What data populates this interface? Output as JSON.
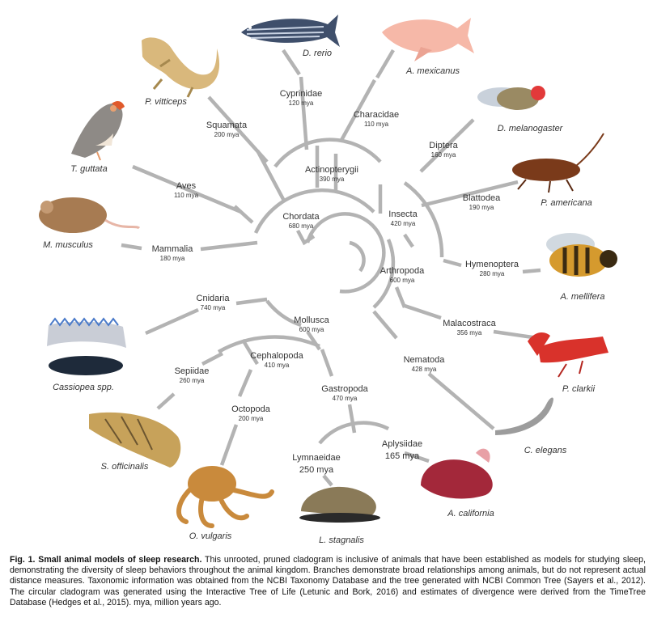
{
  "clades": {
    "chordata": {
      "name": "Chordata",
      "mya": "680 mya"
    },
    "actinopterygii": {
      "name": "Actinopterygii",
      "mya": "390 mya"
    },
    "cyprinidae": {
      "name": "Cyprinidae",
      "mya": "120 mya"
    },
    "characidae": {
      "name": "Characidae",
      "mya": "110 mya"
    },
    "squamata": {
      "name": "Squamata",
      "mya": "200 mya"
    },
    "aves": {
      "name": "Aves",
      "mya": "110 mya"
    },
    "mammalia": {
      "name": "Mammalia",
      "mya": "180 mya"
    },
    "insecta": {
      "name": "Insecta",
      "mya": "420 mya"
    },
    "diptera": {
      "name": "Diptera",
      "mya": "160 mya"
    },
    "blattodea": {
      "name": "Blattodea",
      "mya": "190 mya"
    },
    "hymenoptera": {
      "name": "Hymenoptera",
      "mya": "280 mya"
    },
    "arthropoda": {
      "name": "Arthropoda",
      "mya": "600 mya"
    },
    "malacostraca": {
      "name": "Malacostraca",
      "mya": "356 mya"
    },
    "nematoda": {
      "name": "Nematoda",
      "mya": "428 mya"
    },
    "cnidaria": {
      "name": "Cnidaria",
      "mya": "740 mya"
    },
    "mollusca": {
      "name": "Mollusca",
      "mya": "600 mya"
    },
    "cephalopoda": {
      "name": "Cephalopoda",
      "mya": "410 mya"
    },
    "sepiidae": {
      "name": "Sepiidae",
      "mya": "260 mya"
    },
    "octopoda": {
      "name": "Octopoda",
      "mya": "200 mya"
    },
    "gastropoda": {
      "name": "Gastropoda",
      "mya": "470 mya"
    },
    "lymnaeidae": {
      "name": "Lymnaeidae",
      "mya": "250 mya"
    },
    "aplysiidae": {
      "name": "Aplysiidae",
      "mya": "165 mya"
    }
  },
  "species": {
    "drerio": "D. rerio",
    "amexicanus": "A. mexicanus",
    "pvitticeps": "P. vitticeps",
    "tguttata": "T. guttata",
    "mmusculus": "M. musculus",
    "dmelanogaster": "D. melanogaster",
    "pamericana": "P. americana",
    "amellifera": "A. mellifera",
    "pclarkii": "P. clarkii",
    "celegans": "C. elegans",
    "acalifornia": "A. california",
    "lstagnalis": "L. stagnalis",
    "ovulgaris": "O. vulgaris",
    "sofficinalis": "S. officinalis",
    "cassiopea": "Cassiopea spp."
  },
  "caption": {
    "title": "Fig. 1. Small animal models of sleep research.",
    "body": " This unrooted, pruned cladogram is inclusive of animals that have been established as models for studying sleep, demonstrating the diversity of sleep behaviors throughout the animal kingdom. Branches demonstrate broad relationships among animals, but do not represent actual distance measures. Taxonomic information was obtained from the NCBI Taxonomy Database and the tree generated with NCBI Common Tree (Sayers et al., 2012). The circular cladogram was generated using the Interactive Tree of Life (Letunic and Bork, 2016) and estimates of divergence were derived from the TimeTree Database (Hedges et al., 2015). mya, million years ago."
  },
  "colors": {
    "branch": "#b3b3b3",
    "text": "#333333",
    "fish_blue": "#3f4f6b",
    "cavefish": "#f6b8a8",
    "fly_red": "#e23a3a",
    "crayfish": "#d9322b",
    "octopus": "#c98a3c",
    "aplysia": "#a3283a"
  }
}
